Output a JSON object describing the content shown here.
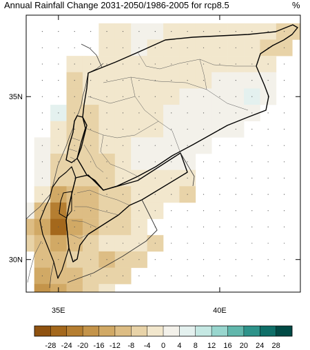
{
  "title": "Annual Rainfall Change 2031-2050/1986-2005 for rcp8.5",
  "unit": "%",
  "axes": {
    "lat_ticks": [
      {
        "value": 35,
        "label": "35N"
      },
      {
        "value": 30,
        "label": "30N"
      }
    ],
    "lon_ticks": [
      {
        "value": 35,
        "label": "35E"
      },
      {
        "value": 40,
        "label": "40E"
      }
    ],
    "lon_range": [
      34,
      42.5
    ],
    "lat_range": [
      29,
      37.5
    ]
  },
  "colorbar": {
    "labels": [
      "-28",
      "-24",
      "-20",
      "-16",
      "-12",
      "-8",
      "-4",
      "0",
      "4",
      "8",
      "12",
      "16",
      "20",
      "24",
      "28"
    ],
    "colors": [
      "#8f5210",
      "#a4681c",
      "#b57e31",
      "#c4944a",
      "#d1a965",
      "#ddbd84",
      "#e8d3a8",
      "#f2e7cd",
      "#f3f1ea",
      "#e4f1ef",
      "#c5e8e3",
      "#98d6ce",
      "#61b7ac",
      "#2e938a",
      "#0f6f68",
      "#014a45"
    ]
  },
  "chart_data": {
    "type": "heatmap",
    "title": "Annual Rainfall Change 2031-2050/1986-2005 for rcp8.5",
    "unit": "%",
    "xlabel": "",
    "ylabel": "",
    "xlim": [
      34,
      42.5
    ],
    "ylim": [
      29,
      37.5
    ],
    "colorbar_range": [
      -28,
      28
    ],
    "cells": [
      [
        37.0,
        36.5,
        -3
      ],
      [
        37.0,
        37.0,
        -2
      ],
      [
        37.0,
        37.5,
        1
      ],
      [
        37.0,
        38.0,
        0
      ],
      [
        37.0,
        38.5,
        -2
      ],
      [
        37.0,
        39.0,
        -3
      ],
      [
        37.0,
        39.5,
        -3
      ],
      [
        37.0,
        40.0,
        -4
      ],
      [
        37.0,
        40.5,
        -3
      ],
      [
        37.0,
        41.0,
        -3
      ],
      [
        37.0,
        41.5,
        -4
      ],
      [
        37.0,
        42.0,
        -5
      ],
      [
        37.0,
        42.5,
        -6
      ],
      [
        36.5,
        36.5,
        -3
      ],
      [
        36.5,
        37.0,
        -1
      ],
      [
        36.5,
        37.5,
        0
      ],
      [
        36.5,
        38.0,
        -1
      ],
      [
        36.5,
        38.5,
        -2
      ],
      [
        36.5,
        39.0,
        -3
      ],
      [
        36.5,
        39.5,
        -3
      ],
      [
        36.5,
        40.0,
        -4
      ],
      [
        36.5,
        40.5,
        -3
      ],
      [
        36.5,
        41.0,
        -4
      ],
      [
        36.5,
        41.5,
        -5
      ],
      [
        36.5,
        42.0,
        -5
      ],
      [
        36.0,
        35.5,
        -4
      ],
      [
        36.0,
        36.0,
        -3
      ],
      [
        36.0,
        36.5,
        -2
      ],
      [
        36.0,
        37.0,
        -2
      ],
      [
        36.0,
        37.5,
        -1
      ],
      [
        36.0,
        38.0,
        -2
      ],
      [
        36.0,
        38.5,
        -2
      ],
      [
        36.0,
        39.0,
        -3
      ],
      [
        36.0,
        39.5,
        -3
      ],
      [
        36.0,
        40.0,
        -3
      ],
      [
        36.0,
        40.5,
        -2
      ],
      [
        36.0,
        41.0,
        -2
      ],
      [
        36.0,
        41.5,
        -3
      ],
      [
        35.5,
        35.5,
        -5
      ],
      [
        35.5,
        36.0,
        -4
      ],
      [
        35.5,
        36.5,
        -3
      ],
      [
        35.5,
        37.0,
        -2
      ],
      [
        35.5,
        37.5,
        -2
      ],
      [
        35.5,
        38.0,
        -1
      ],
      [
        35.5,
        38.5,
        -1
      ],
      [
        35.5,
        39.0,
        -1
      ],
      [
        35.5,
        39.5,
        -1
      ],
      [
        35.5,
        40.0,
        0
      ],
      [
        35.5,
        40.5,
        1
      ],
      [
        35.5,
        41.0,
        1
      ],
      [
        35.5,
        41.5,
        1
      ],
      [
        35.0,
        35.5,
        -5
      ],
      [
        35.0,
        36.0,
        -4
      ],
      [
        35.0,
        36.5,
        -3
      ],
      [
        35.0,
        37.0,
        -2
      ],
      [
        35.0,
        37.5,
        -2
      ],
      [
        35.0,
        38.0,
        -1
      ],
      [
        35.0,
        38.5,
        -1
      ],
      [
        35.0,
        39.0,
        0
      ],
      [
        35.0,
        39.5,
        0
      ],
      [
        35.0,
        40.0,
        2
      ],
      [
        35.0,
        40.5,
        3
      ],
      [
        35.0,
        41.0,
        5
      ],
      [
        35.0,
        41.5,
        3
      ],
      [
        34.5,
        35.0,
        6
      ],
      [
        34.5,
        35.5,
        -6
      ],
      [
        34.5,
        36.0,
        -5
      ],
      [
        34.5,
        36.5,
        -3
      ],
      [
        34.5,
        37.0,
        -2
      ],
      [
        34.5,
        37.5,
        -2
      ],
      [
        34.5,
        38.0,
        -1
      ],
      [
        34.5,
        38.5,
        0
      ],
      [
        34.5,
        39.0,
        0
      ],
      [
        34.5,
        39.5,
        1
      ],
      [
        34.5,
        40.0,
        1
      ],
      [
        34.5,
        40.5,
        1
      ],
      [
        34.5,
        41.0,
        2
      ],
      [
        34.0,
        35.0,
        -3
      ],
      [
        34.0,
        35.5,
        -6
      ],
      [
        34.0,
        36.0,
        -5
      ],
      [
        34.0,
        36.5,
        -4
      ],
      [
        34.0,
        37.0,
        -2
      ],
      [
        34.0,
        37.5,
        -2
      ],
      [
        34.0,
        38.0,
        -1
      ],
      [
        34.0,
        38.5,
        0
      ],
      [
        34.0,
        39.0,
        0
      ],
      [
        34.0,
        39.5,
        1
      ],
      [
        34.0,
        40.0,
        1
      ],
      [
        34.0,
        40.5,
        1
      ],
      [
        33.5,
        34.5,
        2
      ],
      [
        33.5,
        35.0,
        -4
      ],
      [
        33.5,
        35.5,
        -6
      ],
      [
        33.5,
        36.0,
        -5
      ],
      [
        33.5,
        36.5,
        -4
      ],
      [
        33.5,
        37.0,
        -3
      ],
      [
        33.5,
        37.5,
        0
      ],
      [
        33.5,
        38.0,
        1
      ],
      [
        33.5,
        38.5,
        0
      ],
      [
        33.5,
        39.0,
        0
      ],
      [
        33.5,
        39.5,
        1
      ],
      [
        33.0,
        34.5,
        3
      ],
      [
        33.0,
        35.0,
        -5
      ],
      [
        33.0,
        35.5,
        -7
      ],
      [
        33.0,
        36.0,
        -6
      ],
      [
        33.0,
        36.5,
        -5
      ],
      [
        33.0,
        37.0,
        -3
      ],
      [
        33.0,
        37.5,
        0
      ],
      [
        33.0,
        38.0,
        0
      ],
      [
        33.0,
        38.5,
        1
      ],
      [
        33.0,
        39.0,
        1
      ],
      [
        32.5,
        34.5,
        2
      ],
      [
        32.5,
        35.0,
        -6
      ],
      [
        32.5,
        35.5,
        -8
      ],
      [
        32.5,
        36.0,
        -7
      ],
      [
        32.5,
        36.5,
        -6
      ],
      [
        32.5,
        37.0,
        -4
      ],
      [
        32.5,
        37.5,
        -3
      ],
      [
        32.5,
        38.0,
        -2
      ],
      [
        32.5,
        38.5,
        -3
      ],
      [
        32.5,
        39.0,
        -4
      ],
      [
        32.0,
        34.5,
        -2
      ],
      [
        32.0,
        35.0,
        -14
      ],
      [
        32.0,
        35.5,
        -10
      ],
      [
        32.0,
        36.0,
        -9
      ],
      [
        32.0,
        36.5,
        -7
      ],
      [
        32.0,
        37.0,
        -5
      ],
      [
        32.0,
        37.5,
        -3
      ],
      [
        32.0,
        38.0,
        -2
      ],
      [
        32.0,
        38.5,
        -4
      ],
      [
        32.0,
        39.0,
        -5
      ],
      [
        31.5,
        34.0,
        2
      ],
      [
        31.5,
        34.5,
        -12
      ],
      [
        31.5,
        35.0,
        -22
      ],
      [
        31.5,
        35.5,
        -12
      ],
      [
        31.5,
        36.0,
        -9
      ],
      [
        31.5,
        36.5,
        -7
      ],
      [
        31.5,
        37.0,
        -5
      ],
      [
        31.5,
        37.5,
        -4
      ],
      [
        31.5,
        38.0,
        -3
      ],
      [
        31.0,
        34.0,
        -10
      ],
      [
        31.0,
        34.5,
        -15
      ],
      [
        31.0,
        35.0,
        -26
      ],
      [
        31.0,
        35.5,
        -14
      ],
      [
        31.0,
        36.0,
        -10
      ],
      [
        31.0,
        36.5,
        -8
      ],
      [
        31.0,
        37.0,
        -6
      ],
      [
        31.0,
        37.5,
        -3
      ],
      [
        30.5,
        34.0,
        -8
      ],
      [
        30.5,
        34.5,
        -12
      ],
      [
        30.5,
        35.0,
        -14
      ],
      [
        30.5,
        35.5,
        -10
      ],
      [
        30.5,
        36.0,
        -6
      ],
      [
        30.5,
        36.5,
        -4
      ],
      [
        30.5,
        37.0,
        -2
      ],
      [
        30.5,
        37.5,
        -3
      ],
      [
        30.5,
        38.0,
        -5
      ],
      [
        30.0,
        34.5,
        -12
      ],
      [
        30.0,
        35.0,
        -9
      ],
      [
        30.0,
        35.5,
        -7
      ],
      [
        30.0,
        36.0,
        -8
      ],
      [
        30.0,
        36.5,
        -10
      ],
      [
        30.0,
        37.0,
        -8
      ],
      [
        30.0,
        37.5,
        -6
      ],
      [
        29.5,
        34.5,
        -16
      ],
      [
        29.5,
        35.0,
        -12
      ],
      [
        29.5,
        35.5,
        -9
      ],
      [
        29.5,
        36.0,
        -8
      ],
      [
        29.5,
        36.5,
        -7
      ],
      [
        29.5,
        37.0,
        -5
      ],
      [
        29.0,
        34.5,
        -18
      ],
      [
        29.0,
        35.0,
        -13
      ],
      [
        29.0,
        35.5,
        -9
      ],
      [
        29.0,
        36.0,
        -6
      ],
      [
        29.0,
        36.5,
        -4
      ]
    ]
  }
}
